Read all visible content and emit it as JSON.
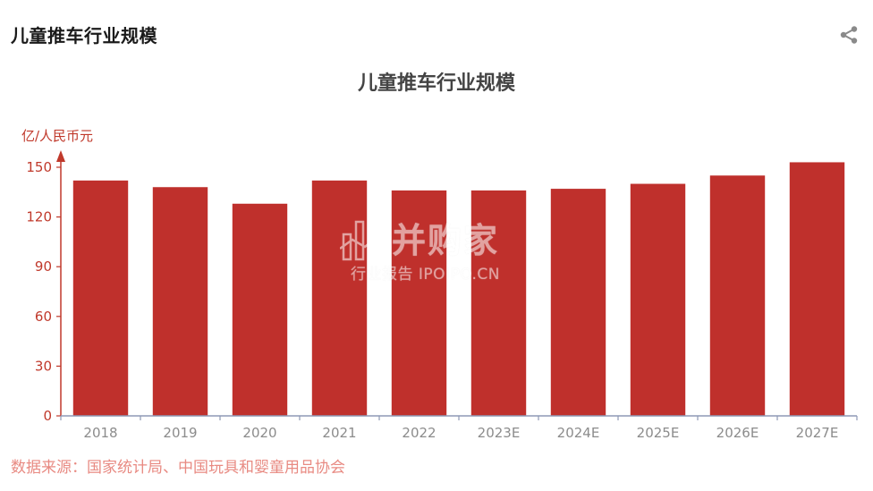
{
  "header": {
    "title": "儿童推车行业规模",
    "share_icon": "share-icon"
  },
  "footer": {
    "source": "数据来源：国家统计局、中国玩具和婴童用品协会"
  },
  "watermark": {
    "main": "并购家",
    "sub": "行业报告 IPOIPO.CN"
  },
  "colors": {
    "bar": "#bf302c",
    "axis_text": "#c0392b",
    "xaxis_text": "#8c8c8c",
    "source_text": "#e88a82"
  },
  "chart_data": {
    "type": "bar",
    "title": "儿童推车行业规模",
    "ylabel": "亿/人民币元",
    "xlabel": "",
    "categories": [
      "2018",
      "2019",
      "2020",
      "2021",
      "2022",
      "2023E",
      "2024E",
      "2025E",
      "2026E",
      "2027E"
    ],
    "values": [
      142,
      138,
      128,
      142,
      136,
      136,
      137,
      140,
      145,
      153
    ],
    "ylim": [
      0,
      160
    ],
    "yticks": [
      0,
      30,
      60,
      90,
      120,
      150
    ],
    "ytick_labels": [
      "0",
      "30",
      "60",
      "90",
      "120",
      "150"
    ],
    "grid": false,
    "legend": "none"
  }
}
